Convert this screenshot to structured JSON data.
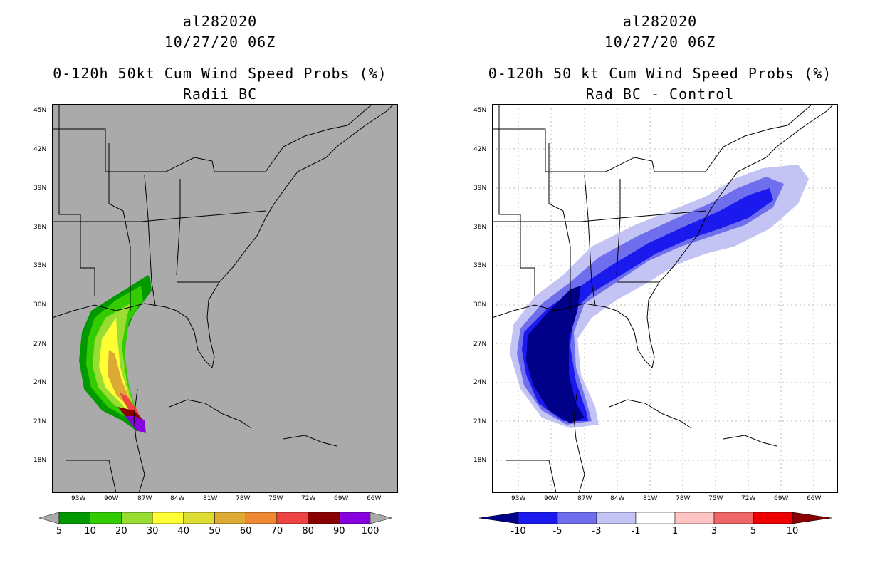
{
  "left": {
    "title_lines": [
      "al282020",
      "10/27/20 06Z",
      "0-120h 50kt Cum Wind Speed Probs (%)",
      "Radii BC"
    ],
    "background_color": "#aaaaaa",
    "colorbar": {
      "colors": [
        "#009900",
        "#33cc00",
        "#99dd33",
        "#ffff33",
        "#dddd33",
        "#ddaa33",
        "#ee8833",
        "#ee4444",
        "#880000",
        "#8800dd"
      ],
      "labels": [
        "5",
        "10",
        "20",
        "30",
        "40",
        "50",
        "60",
        "70",
        "80",
        "90",
        "100"
      ]
    }
  },
  "right": {
    "title_lines": [
      "al282020",
      "10/27/20 06Z",
      "0-120h 50 kt Cum Wind Speed Probs (%)",
      "Rad BC - Control"
    ],
    "background_color": "#ffffff",
    "colorbar": {
      "colors": [
        "#000088",
        "#1a1aee",
        "#6f6fee",
        "#c4c4f4",
        "#ffffff",
        "#ffc4c4",
        "#ee6666",
        "#ee0000",
        "#880000"
      ],
      "labels": [
        "-10",
        "-5",
        "-3",
        "-1",
        "1",
        "3",
        "5",
        "10"
      ]
    }
  },
  "lat_labels": [
    "45N",
    "42N",
    "39N",
    "36N",
    "33N",
    "30N",
    "27N",
    "24N",
    "21N",
    "18N"
  ],
  "lon_labels": [
    "93W",
    "90W",
    "87W",
    "84W",
    "81W",
    "78W",
    "75W",
    "72W",
    "69W",
    "66W"
  ]
}
